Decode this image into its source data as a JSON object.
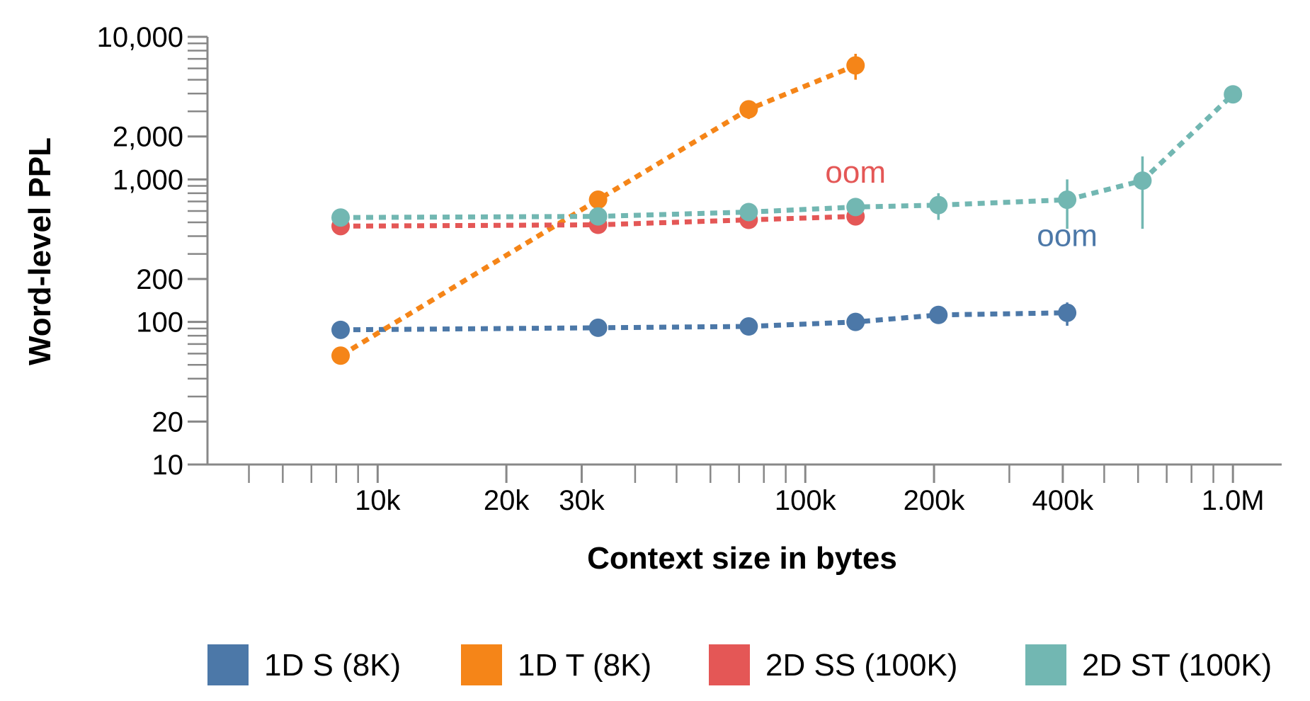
{
  "chart_data": {
    "type": "line",
    "title": "",
    "xlabel": "Context size in bytes",
    "ylabel": "Word-level PPL",
    "xscale": "log",
    "yscale": "log",
    "xlim": [
      4000,
      1300000
    ],
    "ylim": [
      10,
      10000
    ],
    "x_ticks": [
      {
        "value": 10000,
        "label": "10k"
      },
      {
        "value": 20000,
        "label": "20k"
      },
      {
        "value": 30000,
        "label": "30k"
      },
      {
        "value": 100000,
        "label": "100k"
      },
      {
        "value": 200000,
        "label": "200k"
      },
      {
        "value": 400000,
        "label": "400k"
      },
      {
        "value": 1000000,
        "label": "1.0M"
      }
    ],
    "y_ticks": [
      {
        "value": 10,
        "label": "10"
      },
      {
        "value": 20,
        "label": "20"
      },
      {
        "value": 100,
        "label": "100"
      },
      {
        "value": 200,
        "label": "200"
      },
      {
        "value": 1000,
        "label": "1,000"
      },
      {
        "value": 2000,
        "label": "2,000"
      },
      {
        "value": 10000,
        "label": "10,000"
      }
    ],
    "series": [
      {
        "name": "1D S (8K)",
        "color": "#4c78a8",
        "x": [
          8192,
          32768,
          73728,
          131072,
          204800,
          409600
        ],
        "y": [
          88,
          91,
          93,
          100,
          112,
          116
        ],
        "err_low": [
          81,
          86,
          89,
          96,
          103,
          94
        ],
        "err_high": [
          95,
          96,
          97,
          104,
          121,
          137
        ],
        "annotation": "oom"
      },
      {
        "name": "1D T (8K)",
        "color": "#f58518",
        "x": [
          8192,
          32768,
          73728,
          131072
        ],
        "y": [
          58,
          720,
          3100,
          6300
        ],
        "err_low": [
          55,
          680,
          2650,
          5000
        ],
        "err_high": [
          61,
          760,
          3550,
          7600
        ]
      },
      {
        "name": "2D SS (100K)",
        "color": "#e45756",
        "x": [
          8192,
          32768,
          73728,
          131072
        ],
        "y": [
          470,
          480,
          520,
          550
        ],
        "err_low": [
          410,
          440,
          460,
          490
        ],
        "err_high": [
          520,
          520,
          580,
          610
        ],
        "annotation": "oom"
      },
      {
        "name": "2D ST (100K)",
        "color": "#72b7b2",
        "x": [
          8192,
          32768,
          73728,
          131072,
          204800,
          409600,
          614400,
          1000000
        ],
        "y": [
          540,
          550,
          590,
          640,
          660,
          720,
          980,
          3950
        ],
        "err_low": [
          500,
          520,
          550,
          600,
          520,
          450,
          450,
          3850
        ],
        "err_high": [
          580,
          580,
          630,
          680,
          800,
          1000,
          1450,
          4050
        ]
      }
    ],
    "annotations": [
      {
        "text": "oom",
        "series": "2D SS (100K)",
        "x": 131072,
        "y": 950
      },
      {
        "text": "oom",
        "series": "1D S (8K)",
        "x": 409600,
        "y": 340
      }
    ],
    "legend": {
      "position": "bottom"
    }
  }
}
